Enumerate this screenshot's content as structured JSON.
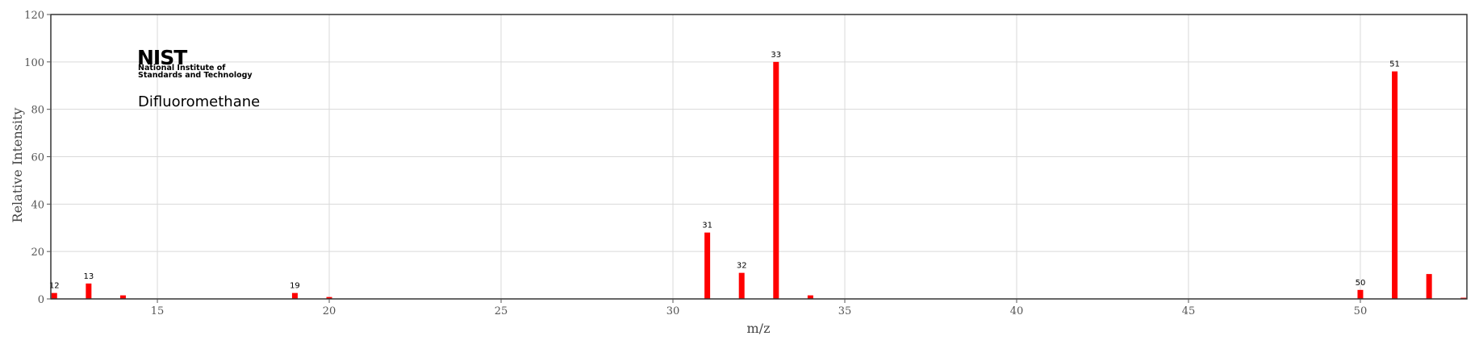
{
  "chart_data": {
    "type": "bar",
    "xlabel": "m/z",
    "ylabel": "Relative Intensity",
    "xlim": [
      11.9,
      53.1
    ],
    "ylim": [
      0,
      120
    ],
    "x_ticks": [
      15,
      20,
      25,
      30,
      35,
      40,
      45,
      50
    ],
    "y_ticks": [
      0,
      20,
      40,
      60,
      80,
      100,
      120
    ],
    "grid": true,
    "bar_color": "#ff0000",
    "series": [
      {
        "x": [
          12,
          13,
          14,
          19,
          20,
          31,
          32,
          33,
          34,
          50,
          51,
          52,
          53
        ],
        "values": [
          2.5,
          6.5,
          1.5,
          2.5,
          0.8,
          28,
          11,
          100,
          1.5,
          3.8,
          96,
          10.5,
          0.5
        ]
      }
    ],
    "peak_labels": [
      12,
      13,
      19,
      31,
      32,
      33,
      50,
      51
    ]
  },
  "logo": {
    "wordmark": "NIST",
    "line1": "National Institute of",
    "line2": "Standards and Technology"
  },
  "compound_name": "Difluoromethane"
}
